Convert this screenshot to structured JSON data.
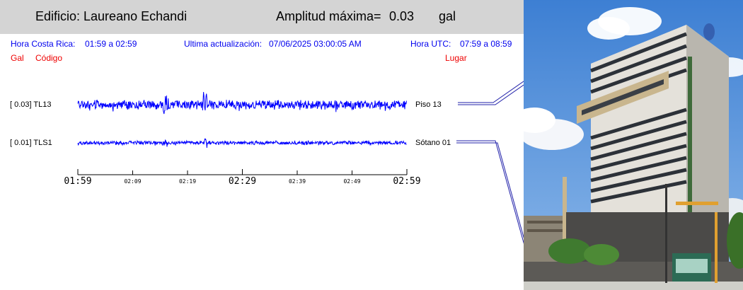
{
  "header": {
    "building_label": "Edificio: Laureano Echandi",
    "amplitude_label": "Amplitud máxima=",
    "amplitude_value": "0.03",
    "amplitude_unit": "gal"
  },
  "info": {
    "cr_time_label": "Hora Costa Rica:",
    "cr_time_range": "01:59 a 02:59",
    "update_label": "Ultima actualización:",
    "update_value": "07/06/2025 03:00:05 AM",
    "utc_label": "Hora UTC:",
    "utc_range": "07:59 a 08:59"
  },
  "columns": {
    "gal": "Gal",
    "code": "Código",
    "place": "Lugar"
  },
  "chart_data": {
    "type": "line",
    "x_unit": "time (hh:mm, Costa Rica)",
    "x_range": [
      "01:59",
      "02:59"
    ],
    "x_ticks": [
      "01:59",
      "02:09",
      "02:19",
      "02:29",
      "02:39",
      "02:49",
      "02:59"
    ],
    "x_major_ticks": [
      "01:59",
      "02:29",
      "02:59"
    ],
    "series": [
      {
        "name": "TL13",
        "gal_label": "[  0.03] TL13",
        "place": "Piso 13",
        "peak_gal": 0.03,
        "color": "#0000ff"
      },
      {
        "name": "TLS1",
        "gal_label": "[  0.01] TLS1",
        "place": "Sótano 01",
        "peak_gal": 0.01,
        "color": "#0000ff"
      }
    ]
  },
  "photo": {
    "sky": "#4f8fd8",
    "building": "#d9d6cf"
  }
}
